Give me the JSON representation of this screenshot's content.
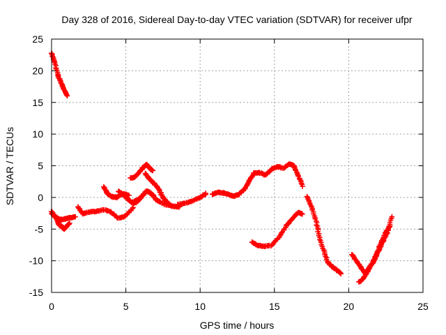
{
  "chart_data": {
    "type": "scatter",
    "title": "Day 328 of 2016, Sidereal Day-to-day VTEC variation (SDTVAR) for receiver ufpr",
    "xlabel": "GPS time / hours",
    "ylabel": "SDTVAR / TECUs",
    "xlim": [
      0,
      25
    ],
    "ylim": [
      -15,
      25
    ],
    "xticks": [
      0,
      5,
      10,
      15,
      20,
      25
    ],
    "yticks": [
      -15,
      -10,
      -5,
      0,
      5,
      10,
      15,
      20,
      25
    ],
    "xtick_labels": [
      "0",
      "5",
      "10",
      "15",
      "20",
      "25"
    ],
    "ytick_labels": [
      "-15",
      "-10",
      "-5",
      "0",
      "5",
      "10",
      "15",
      "20",
      "25"
    ],
    "grid": true,
    "marker": "plus",
    "color": "#ff0000",
    "series": [
      {
        "name": "s1",
        "x": [
          0.0,
          0.2,
          0.4,
          0.6,
          0.8,
          1.05
        ],
        "y": [
          22.8,
          21.5,
          19.5,
          18.3,
          17.2,
          16.0
        ]
      },
      {
        "name": "s2",
        "x": [
          0.0,
          0.3,
          0.6,
          0.9,
          1.2,
          1.6
        ],
        "y": [
          -2.2,
          -3.2,
          -3.5,
          -3.4,
          -3.2,
          -3.1
        ]
      },
      {
        "name": "s3",
        "x": [
          0.0,
          0.3,
          0.5,
          0.7,
          0.85,
          1.0,
          1.2
        ],
        "y": [
          -2.5,
          -3.2,
          -4.3,
          -4.6,
          -5.0,
          -4.6,
          -4.1
        ]
      },
      {
        "name": "s4",
        "x": [
          1.8,
          2.1,
          2.5,
          3.0,
          3.5,
          4.0,
          4.5,
          5.0,
          5.5
        ],
        "y": [
          -1.5,
          -2.6,
          -2.3,
          -2.2,
          -1.9,
          -2.3,
          -3.3,
          -2.9,
          -1.6
        ]
      },
      {
        "name": "s5",
        "x": [
          3.5,
          3.8,
          4.1,
          4.4,
          4.6,
          4.9,
          5.2
        ],
        "y": [
          1.7,
          0.5,
          0.1,
          0.0,
          0.4,
          0.6,
          0.3
        ]
      },
      {
        "name": "s6",
        "x": [
          4.5,
          4.8,
          5.1,
          5.4,
          5.7,
          6.0,
          6.2
        ],
        "y": [
          1.0,
          0.5,
          -0.2,
          -0.8,
          -0.5,
          -0.1,
          0.5
        ]
      },
      {
        "name": "s7",
        "x": [
          5.5,
          5.8,
          6.1,
          6.4,
          6.6,
          6.8,
          7.1,
          7.6,
          8.2,
          8.6
        ],
        "y": [
          -1.0,
          -0.6,
          0.3,
          1.0,
          0.8,
          0.4,
          -0.5,
          -1.1,
          -1.4,
          -1.5
        ]
      },
      {
        "name": "s8",
        "x": [
          5.3,
          5.6,
          5.9,
          6.2,
          6.4,
          6.6,
          6.8
        ],
        "y": [
          3.1,
          3.2,
          4.0,
          4.8,
          5.2,
          4.7,
          4.2
        ]
      },
      {
        "name": "s9",
        "x": [
          6.3,
          6.6,
          6.9,
          7.2,
          7.5,
          7.8,
          8.1
        ],
        "y": [
          3.8,
          2.9,
          2.2,
          1.4,
          0.0,
          -0.8,
          -1.4
        ]
      },
      {
        "name": "s10",
        "x": [
          8.5,
          9.0,
          9.5,
          10.0,
          10.4
        ],
        "y": [
          -1.1,
          -0.9,
          -0.5,
          0.0,
          0.6
        ]
      },
      {
        "name": "s11",
        "x": [
          10.8,
          11.2,
          11.6,
          12.0,
          12.3,
          12.6,
          13.0,
          13.3,
          13.6,
          14.0,
          14.4,
          14.8,
          15.2,
          15.6,
          16.0,
          16.3,
          16.6,
          16.9
        ],
        "y": [
          0.5,
          0.8,
          0.7,
          0.4,
          0.2,
          0.5,
          1.3,
          2.6,
          3.8,
          3.9,
          3.5,
          4.4,
          4.9,
          4.6,
          5.3,
          5.0,
          3.5,
          1.8
        ]
      },
      {
        "name": "s12",
        "x": [
          13.5,
          13.9,
          14.3,
          14.8,
          15.3,
          15.8,
          16.2,
          16.6,
          16.9
        ],
        "y": [
          -7.0,
          -7.6,
          -7.7,
          -7.6,
          -6.3,
          -4.5,
          -3.4,
          -2.4,
          -2.6
        ]
      },
      {
        "name": "s13",
        "x": [
          17.2,
          17.5,
          17.8,
          18.0,
          18.3,
          18.6,
          18.9,
          19.2,
          19.5
        ],
        "y": [
          0.2,
          -1.5,
          -3.7,
          -6.0,
          -8.3,
          -10.3,
          -10.9,
          -11.5,
          -12.0
        ]
      },
      {
        "name": "s14",
        "x": [
          20.2,
          20.5,
          20.8,
          21.1,
          21.4,
          21.7,
          22.0,
          22.3,
          22.6,
          22.9
        ],
        "y": [
          -9.0,
          -10.0,
          -11.0,
          -12.0,
          -11.0,
          -10.0,
          -8.5,
          -7.0,
          -5.5,
          -3.0
        ]
      },
      {
        "name": "s15",
        "x": [
          20.7,
          21.0,
          21.3,
          21.6,
          21.9,
          22.2,
          22.5,
          22.8
        ],
        "y": [
          -13.4,
          -12.7,
          -11.5,
          -10.3,
          -8.8,
          -7.0,
          -5.5,
          -4.5
        ]
      }
    ]
  }
}
